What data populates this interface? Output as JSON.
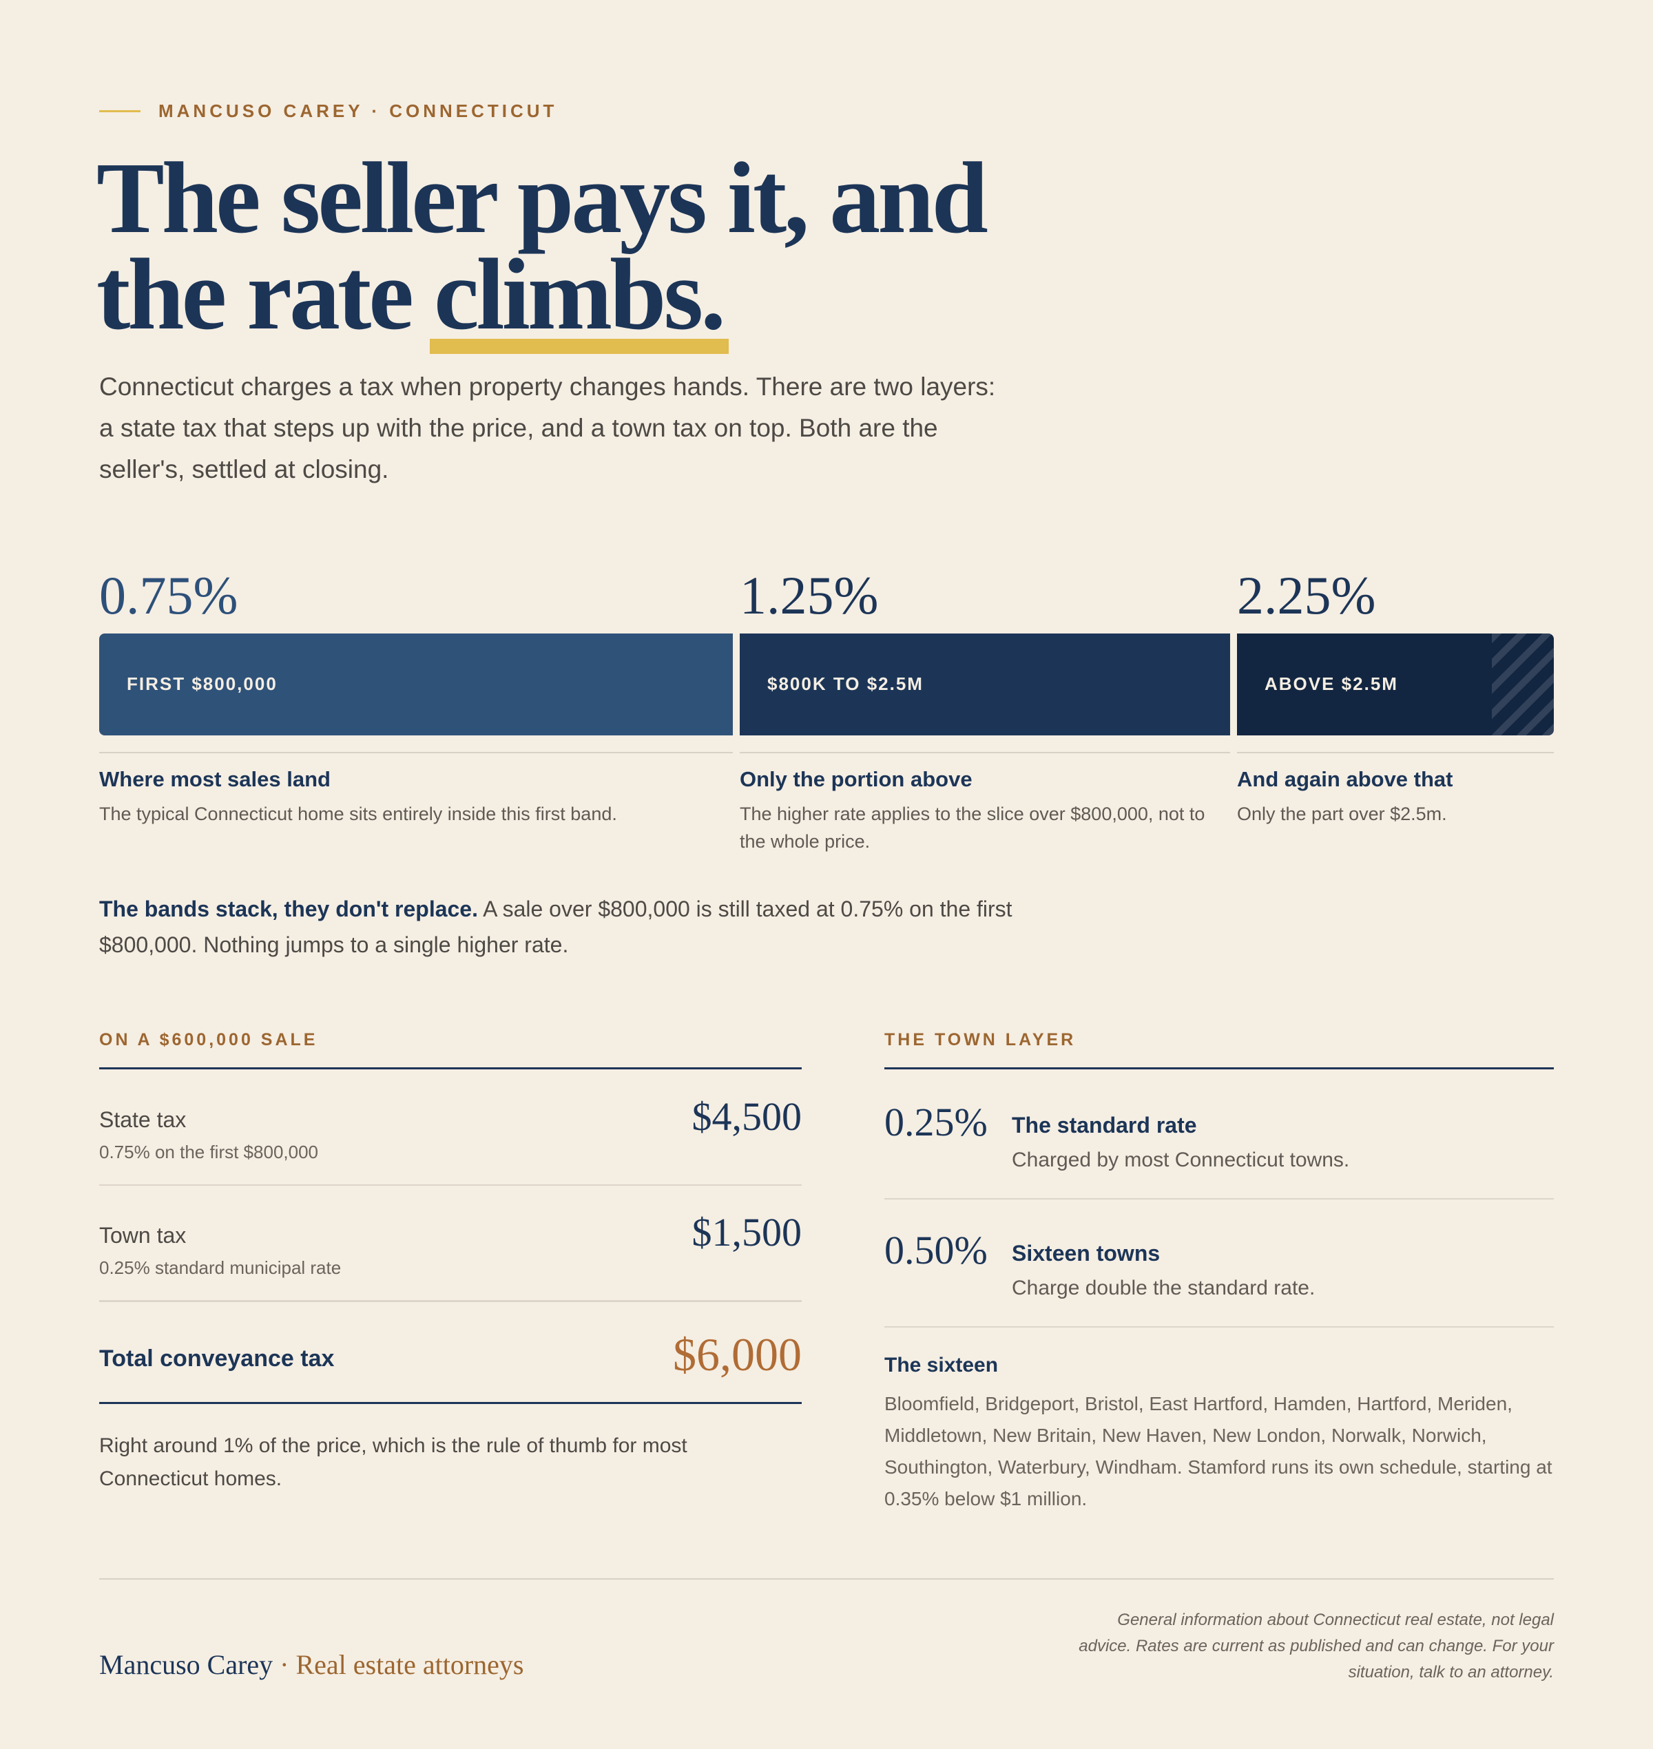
{
  "eyebrow": "MANCUSO CAREY · CONNECTICUT",
  "headline": {
    "line1": "The seller pays it, and",
    "line2_start": "the rate ",
    "line2_highlight": "climbs."
  },
  "intro": "Connecticut charges a tax when property changes hands. There are two layers: a state tax that steps up with the price, and a town tax on top. Both are the seller's, settled at closing.",
  "bands": [
    {
      "rate": "0.75%",
      "label": "FIRST $800,000",
      "heading": "Where most sales land",
      "desc": "The typical Connecticut home sits entirely inside this first band."
    },
    {
      "rate": "1.25%",
      "label": "$800K TO $2.5M",
      "heading": "Only the portion above",
      "desc": "The higher rate applies to the slice over $800,000, not to the whole price."
    },
    {
      "rate": "2.25%",
      "label": "ABOVE $2.5M",
      "heading": "And again above that",
      "desc": "Only the part over $2.5m."
    }
  ],
  "stack_note": {
    "bold": "The bands stack, they don't replace.",
    "rest": " A sale over $800,000 is still taxed at 0.75% on the first $800,000. Nothing jumps to a single higher rate."
  },
  "example": {
    "label": "ON A $600,000 SALE",
    "rows": [
      {
        "name": "State tax",
        "sub": "0.75% on the first $800,000",
        "value": "$4,500"
      },
      {
        "name": "Town tax",
        "sub": "0.25% standard municipal rate",
        "value": "$1,500"
      }
    ],
    "total_name": "Total conveyance tax",
    "total_value": "$6,000",
    "note": "Right around 1% of the price, which is the rule of thumb for most Connecticut homes."
  },
  "town": {
    "label": "THE TOWN LAYER",
    "rates": [
      {
        "rate": "0.25%",
        "title": "The standard rate",
        "desc": "Charged by most Connecticut towns."
      },
      {
        "rate": "0.50%",
        "title": "Sixteen towns",
        "desc": "Charge double the standard rate."
      }
    ],
    "sixteen_heading": "The sixteen",
    "sixteen_body": "Bloomfield, Bridgeport, Bristol, East Hartford, Hamden, Hartford, Meriden, Middletown, New Britain, New Haven, New London, Norwalk, Norwich, Southington, Waterbury, Windham. Stamford runs its own schedule, starting at 0.35% below $1 million."
  },
  "footer": {
    "brand_name": "Mancuso Carey",
    "brand_sep": " · ",
    "brand_tagline": "Real estate attorneys",
    "disclaimer": "General information about Connecticut real estate, not legal advice. Rates are current as published and can change. For your situation, talk to an attorney."
  },
  "colors": {
    "navy": "#1c3557",
    "gold": "#e1bc4e",
    "copper": "#b06c35",
    "background": "#f5eee3"
  }
}
